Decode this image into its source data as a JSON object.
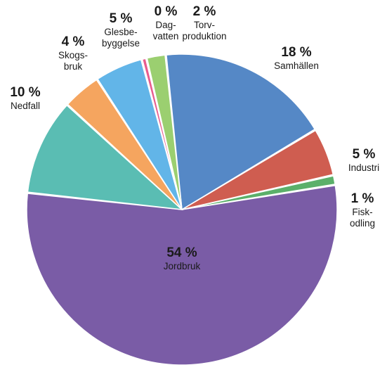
{
  "chart_data": {
    "type": "pie",
    "title": "",
    "unit": "%",
    "slices": [
      {
        "value_label": "18 %",
        "value": 18,
        "label_lines": [
          "Samhällen"
        ],
        "color": "#5588c6"
      },
      {
        "value_label": "5 %",
        "value": 5,
        "label_lines": [
          "Industri"
        ],
        "color": "#cf5d50"
      },
      {
        "value_label": "1 %",
        "value": 1,
        "label_lines": [
          "Fisk-",
          "odling"
        ],
        "color": "#5bb06a"
      },
      {
        "value_label": "54 %",
        "value": 54,
        "label_lines": [
          "Jordbruk"
        ],
        "color": "#7a5ca6"
      },
      {
        "value_label": "10 %",
        "value": 10,
        "label_lines": [
          "Nedfall"
        ],
        "color": "#5abdb3"
      },
      {
        "value_label": "4 %",
        "value": 4,
        "label_lines": [
          "Skogs-",
          "bruk"
        ],
        "color": "#f5a55f"
      },
      {
        "value_label": "5 %",
        "value": 5,
        "label_lines": [
          "Glesbe-",
          "byggelse"
        ],
        "color": "#62b5e8"
      },
      {
        "value_label": "0 %",
        "value": 0.5,
        "label_lines": [
          "Dag-",
          "vatten"
        ],
        "color": "#e85c8e"
      },
      {
        "value_label": "2 %",
        "value": 2,
        "label_lines": [
          "Torv-",
          "produktion"
        ],
        "color": "#9bcf70"
      }
    ]
  }
}
